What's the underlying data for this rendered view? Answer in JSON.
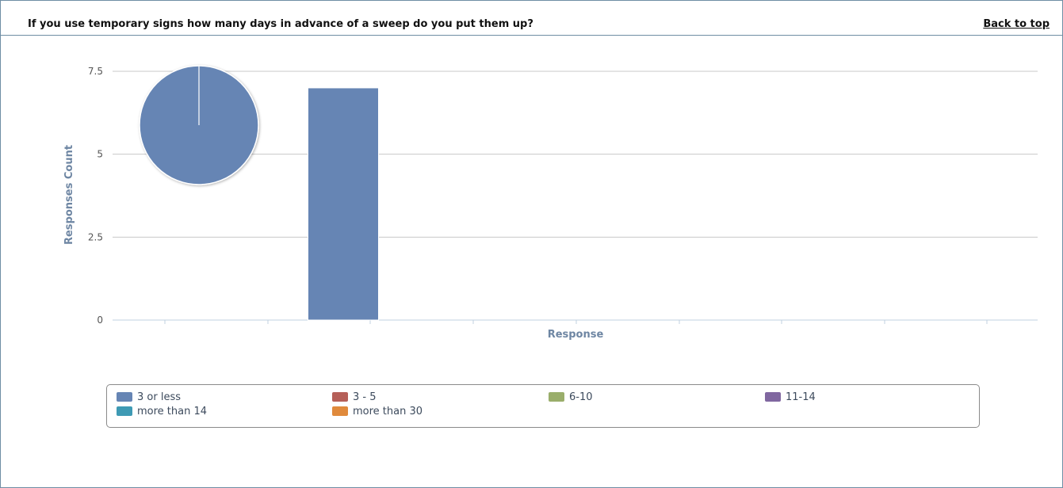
{
  "header": {
    "question": "If you use temporary signs how many days in advance of a sweep do you put them up?",
    "back_link": "Back to top"
  },
  "chart_data": [
    {
      "type": "bar",
      "categories": [
        "3 or less",
        "3 - 5",
        "6-10",
        "11-14",
        "more than 14",
        "more than 30"
      ],
      "values": [
        7,
        0,
        0,
        0,
        0,
        0
      ],
      "xlabel": "Response",
      "ylabel": "Responses Count",
      "ylim": [
        0,
        7.5
      ],
      "yticks": [
        "0",
        "2.5",
        "5",
        "7.5"
      ],
      "grid": true,
      "legend": "bottom",
      "colors": [
        "#6685b4",
        "#b55f58",
        "#9aae6b",
        "#8067a0",
        "#3e9ab4",
        "#e08a3c"
      ]
    },
    {
      "type": "pie",
      "slices": [
        {
          "label": "3 or less",
          "value": 7
        },
        {
          "label": "3 - 5",
          "value": 0
        },
        {
          "label": "6-10",
          "value": 0
        },
        {
          "label": "11-14",
          "value": 0
        },
        {
          "label": "more than 14",
          "value": 0
        },
        {
          "label": "more than 30",
          "value": 0
        }
      ],
      "colors": [
        "#6685b4",
        "#b55f58",
        "#9aae6b",
        "#8067a0",
        "#3e9ab4",
        "#e08a3c"
      ]
    }
  ]
}
